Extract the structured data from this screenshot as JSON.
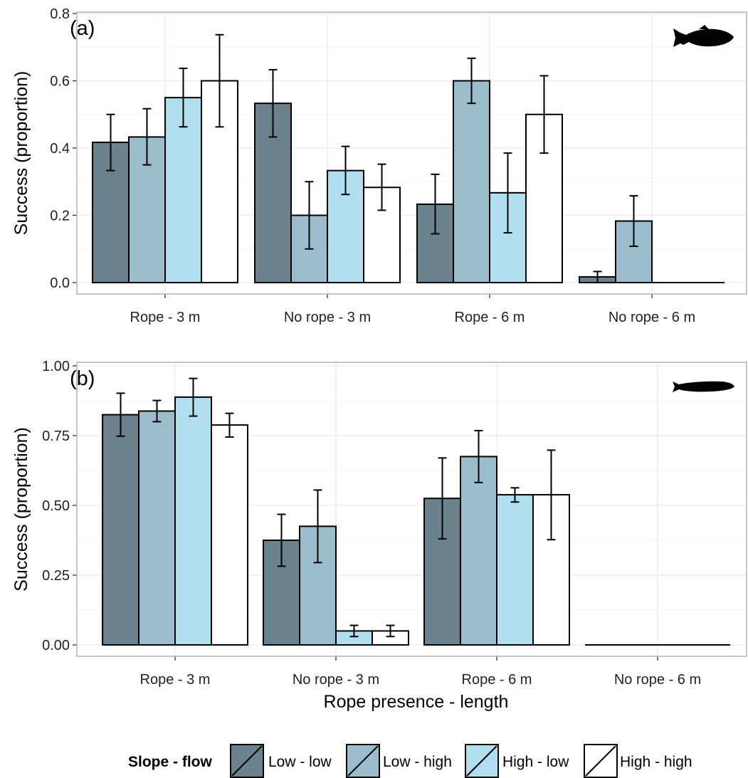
{
  "chart_data": [
    {
      "type": "bar",
      "panel_label": "(a)",
      "icon": "trout-silhouette-icon",
      "categories": [
        "Rope - 3 m",
        "No rope - 3 m",
        "Rope - 6 m",
        "No rope - 6 m"
      ],
      "series": [
        {
          "name": "Low - low",
          "values": [
            0.417,
            0.533,
            0.233,
            0.017
          ],
          "err_low": [
            0.333,
            0.433,
            0.145,
            0.0
          ],
          "err_high": [
            0.5,
            0.633,
            0.322,
            0.033
          ]
        },
        {
          "name": "Low - high",
          "values": [
            0.433,
            0.2,
            0.6,
            0.183
          ],
          "err_low": [
            0.35,
            0.1,
            0.533,
            0.108
          ],
          "err_high": [
            0.517,
            0.3,
            0.667,
            0.258
          ]
        },
        {
          "name": "High - low",
          "values": [
            0.55,
            0.333,
            0.267,
            0.0
          ],
          "err_low": [
            0.463,
            0.262,
            0.148,
            null
          ],
          "err_high": [
            0.637,
            0.405,
            0.385,
            null
          ]
        },
        {
          "name": "High - high",
          "values": [
            0.6,
            0.283,
            0.5,
            0.0
          ],
          "err_low": [
            0.463,
            0.215,
            0.385,
            null
          ],
          "err_high": [
            0.737,
            0.352,
            0.615,
            null
          ]
        }
      ],
      "xlabel": "",
      "ylabel": "Success (proportion)",
      "ylim": [
        -0.03,
        0.8
      ],
      "yticks": [
        0.0,
        0.2,
        0.4,
        0.6,
        0.8
      ],
      "ytick_labels": [
        "0.0",
        "0.2",
        "0.4",
        "0.6",
        "0.8"
      ],
      "grid": true
    },
    {
      "type": "bar",
      "panel_label": "(b)",
      "icon": "eel-silhouette-icon",
      "categories": [
        "Rope - 3 m",
        "No rope - 3 m",
        "Rope - 6 m",
        "No rope - 6 m"
      ],
      "series": [
        {
          "name": "Low - low",
          "values": [
            0.825,
            0.375,
            0.525,
            0.0
          ],
          "err_low": [
            0.748,
            0.282,
            0.38,
            null
          ],
          "err_high": [
            0.902,
            0.468,
            0.67,
            null
          ]
        },
        {
          "name": "Low - high",
          "values": [
            0.838,
            0.425,
            0.675,
            0.0
          ],
          "err_low": [
            0.8,
            0.295,
            0.582,
            null
          ],
          "err_high": [
            0.876,
            0.555,
            0.768,
            null
          ]
        },
        {
          "name": "High - low",
          "values": [
            0.888,
            0.05,
            0.538,
            0.0
          ],
          "err_low": [
            0.82,
            0.03,
            0.512,
            null
          ],
          "err_high": [
            0.955,
            0.07,
            0.563,
            null
          ]
        },
        {
          "name": "High - high",
          "values": [
            0.788,
            0.05,
            0.538,
            0.0
          ],
          "err_low": [
            0.745,
            0.03,
            0.377,
            null
          ],
          "err_high": [
            0.83,
            0.07,
            0.698,
            null
          ]
        }
      ],
      "xlabel": "Rope presence - length",
      "ylabel": "Success (proportion)",
      "ylim": [
        -0.05,
        1.0
      ],
      "yticks": [
        0.0,
        0.25,
        0.5,
        0.75,
        1.0
      ],
      "ytick_labels": [
        "0.00",
        "0.25",
        "0.50",
        "0.75",
        "1.00"
      ],
      "grid": true
    }
  ],
  "legend": {
    "title": "Slope - flow",
    "position": "bottom",
    "items": [
      "Low - low",
      "Low - high",
      "High - low",
      "High - high"
    ]
  },
  "colors": {
    "series": [
      "#6b818c",
      "#9bbccb",
      "#b2dfef",
      "#ffffff"
    ],
    "panel_background": "#ffffff",
    "grid_major": "#ebebeb",
    "grid_minor": "#f5f5f5",
    "panel_border": "#b3b3b3",
    "bar_outline": "#000000"
  }
}
